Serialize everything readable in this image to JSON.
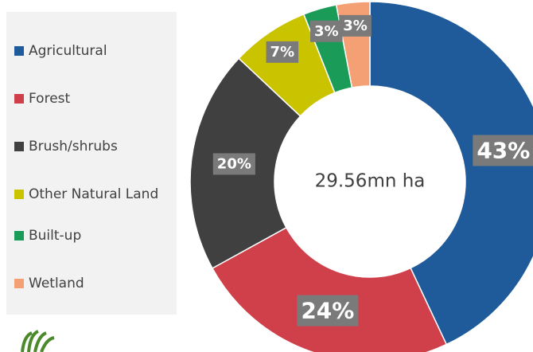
{
  "chart_data": {
    "type": "pie",
    "center_label": "29.56mn ha",
    "categories": [
      "Agricultural",
      "Forest",
      "Brush/shrubs",
      "Other Natural Land",
      "Built-up",
      "Wetland"
    ],
    "values": [
      43,
      24,
      20,
      7,
      3,
      3
    ],
    "value_labels": [
      "43%",
      "24%",
      "20%",
      "7%",
      "3%",
      "3%"
    ],
    "colors": [
      "#1f5b9a",
      "#d0404a",
      "#404040",
      "#c9c300",
      "#1a9c58",
      "#f4a074"
    ],
    "legend": "left"
  }
}
